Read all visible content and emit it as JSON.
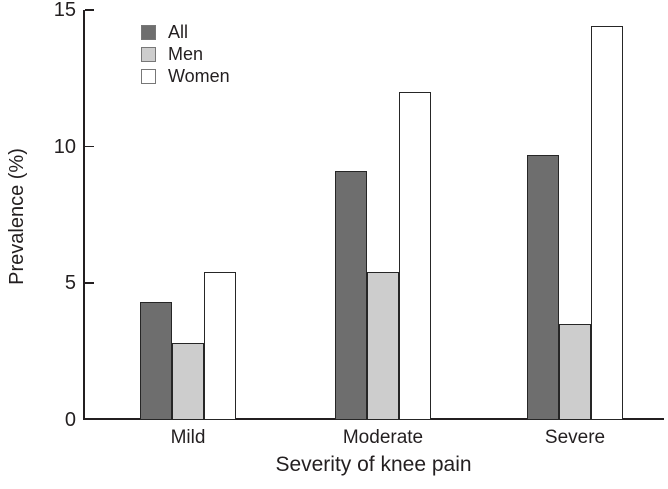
{
  "chart_data": {
    "type": "bar",
    "title": "",
    "xlabel": "Severity of knee pain",
    "ylabel": "Prevalence (%)",
    "categories": [
      "Mild",
      "Moderate",
      "Severe"
    ],
    "series": [
      {
        "name": "All",
        "values": [
          4.3,
          9.1,
          9.7
        ],
        "fill": "#6e6e6e"
      },
      {
        "name": "Men",
        "values": [
          2.8,
          5.4,
          3.5
        ],
        "fill": "#cdcdcd"
      },
      {
        "name": "Women",
        "values": [
          5.4,
          12.0,
          14.4
        ],
        "fill": "#ffffff"
      }
    ],
    "ylim": [
      0,
      15
    ],
    "yticks": [
      0,
      5,
      10,
      15
    ],
    "bar_border_color": "#262626",
    "axis_color": "#231f20",
    "legend_position": "upper-left-inside",
    "grid": false
  }
}
